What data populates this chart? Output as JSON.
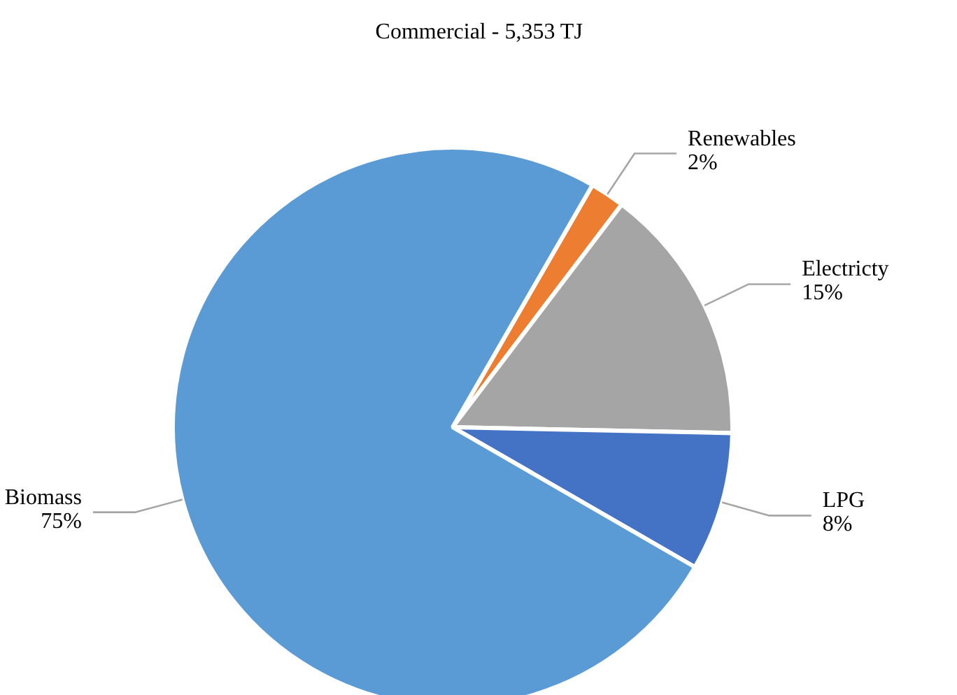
{
  "chart_data": {
    "type": "pie",
    "title": "Commercial - 5,353 TJ",
    "categories": [
      "Renewables",
      "Electricty",
      "LPG",
      "Biomass"
    ],
    "values": [
      2,
      15,
      8,
      75
    ],
    "colors": [
      "#ed7d31",
      "#a5a5a5",
      "#4472c4",
      "#5b9bd5"
    ],
    "value_labels": [
      "2%",
      "15%",
      "8%",
      "75%"
    ]
  }
}
